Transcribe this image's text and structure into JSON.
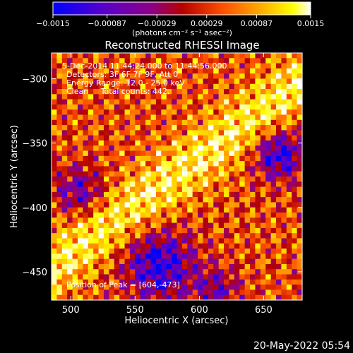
{
  "window_title": "",
  "footer": {
    "timestamp": "20-May-2022 05:54"
  },
  "chart_data": {
    "type": "heatmap",
    "title": "Reconstructed RHESSI Image",
    "xlabel": "Heliocentric X (arcsec)",
    "ylabel": "Heliocentric Y (arcsec)",
    "xlim": [
      485,
      680
    ],
    "ylim": [
      -472,
      -280
    ],
    "x_ticks": [
      500,
      550,
      600,
      650
    ],
    "x_tick_labels": [
      "500",
      "550",
      "600",
      "650"
    ],
    "y_ticks": [
      -300,
      -350,
      -400,
      -450
    ],
    "y_tick_labels": [
      "−300",
      "−350",
      "−400",
      "−450"
    ],
    "colorbar": {
      "range": [
        -0.0015,
        0.0015
      ],
      "ticks": [
        -0.0015,
        -0.00087,
        -0.00029,
        0.00029,
        0.00087,
        0.0015
      ],
      "tick_labels": [
        "−0.0015",
        "−0.00087",
        "−0.00029",
        "0.00029",
        "0.00087",
        "0.0015"
      ],
      "units_label": "(photons cm⁻² s⁻¹ asec⁻²)",
      "colors": [
        "#0000ff",
        "#5a00c8",
        "#8c0088",
        "#b40000",
        "#ff5000",
        "#ffb400",
        "#ffff00",
        "#ffffff"
      ]
    },
    "annotations": [
      "5-Dec-2014 11:44:24.000 to 11:44:56.000",
      "Detectors: 3F 6F 7F 9F, Att 0",
      "Energy Range: 12.0 - 25.0 keV",
      "Clean     Total counts: 442.",
      "Position of Peak = [604,-473]"
    ],
    "peak": {
      "x": 604,
      "y": -473
    },
    "grid": false,
    "legend": "none"
  }
}
